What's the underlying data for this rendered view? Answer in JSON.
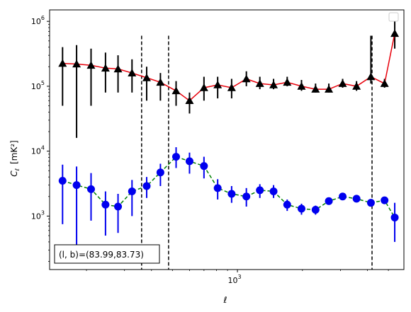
{
  "chart_data": {
    "type": "scatter",
    "xscale": "log",
    "yscale": "log",
    "xlabel": "ℓ",
    "ylabel_main": "C",
    "ylabel_sub": "ℓ",
    "ylabel_unit": "[mK²]",
    "xlim": [
      135,
      5900
    ],
    "ylim": [
      150,
      1500000
    ],
    "x_ticks": [
      {
        "value": 1000,
        "base": "10",
        "exp": "3"
      }
    ],
    "y_ticks": [
      {
        "value": 1000,
        "base": "10",
        "exp": "3"
      },
      {
        "value": 10000,
        "base": "10",
        "exp": "4"
      },
      {
        "value": 100000,
        "base": "10",
        "exp": "5"
      },
      {
        "value": 1000000,
        "base": "10",
        "exp": "6"
      }
    ],
    "vlines": [
      360,
      480,
      4200
    ],
    "annotation": "(l, b)=(83.99,83.73)",
    "legend": "top-right (empty)",
    "colors": {
      "upper_line": "#e8000b",
      "upper_marker": "#000000",
      "lower_line": "#008000",
      "lower_marker": "#0000ee",
      "vline": "#000000"
    },
    "series": [
      {
        "marker": "triangle",
        "line_style": "solid",
        "x": [
          155,
          180,
          210,
          245,
          280,
          325,
          380,
          440,
          520,
          600,
          700,
          810,
          940,
          1100,
          1270,
          1470,
          1700,
          1980,
          2300,
          2650,
          3070,
          3560,
          4150,
          4800,
          5350
        ],
        "y": [
          225000,
          220000,
          210000,
          190000,
          185000,
          160000,
          135000,
          115000,
          85000,
          60000,
          95000,
          105000,
          95000,
          130000,
          110000,
          105000,
          115000,
          100000,
          90000,
          90000,
          110000,
          100000,
          140000,
          110000,
          650000
        ],
        "err_low": [
          50000,
          16000,
          50000,
          80000,
          80000,
          80000,
          60000,
          60000,
          50000,
          38000,
          60000,
          65000,
          65000,
          100000,
          90000,
          90000,
          100000,
          85000,
          80000,
          80000,
          95000,
          85000,
          110000,
          95000,
          380000
        ],
        "err_high": [
          400000,
          430000,
          380000,
          330000,
          300000,
          260000,
          200000,
          160000,
          120000,
          80000,
          140000,
          140000,
          130000,
          170000,
          140000,
          130000,
          140000,
          125000,
          110000,
          110000,
          130000,
          120000,
          600000,
          130000,
          1000000
        ]
      },
      {
        "marker": "circle",
        "line_style": "dashed",
        "x": [
          155,
          180,
          210,
          245,
          280,
          325,
          380,
          440,
          520,
          600,
          700,
          810,
          940,
          1100,
          1270,
          1470,
          1700,
          1980,
          2300,
          2650,
          3070,
          3560,
          4150,
          4800,
          5350
        ],
        "y": [
          3500,
          3000,
          2600,
          1500,
          1400,
          2400,
          2900,
          4700,
          8200,
          7000,
          5900,
          2700,
          2200,
          2000,
          2500,
          2400,
          1500,
          1300,
          1250,
          1700,
          2000,
          1850,
          1600,
          1750,
          950
        ],
        "err_low": [
          750,
          320,
          850,
          500,
          550,
          1000,
          1900,
          2900,
          5500,
          4500,
          3800,
          1800,
          1600,
          1400,
          1900,
          1900,
          1200,
          1050,
          1050,
          1500,
          1800,
          1650,
          1420,
          1550,
          400
        ],
        "err_high": [
          6200,
          5800,
          4600,
          2400,
          2200,
          3600,
          4000,
          6400,
          11500,
          9500,
          8200,
          3700,
          2900,
          2700,
          3100,
          3000,
          1800,
          1550,
          1450,
          1900,
          2200,
          2050,
          1780,
          1950,
          1600
        ]
      }
    ]
  }
}
